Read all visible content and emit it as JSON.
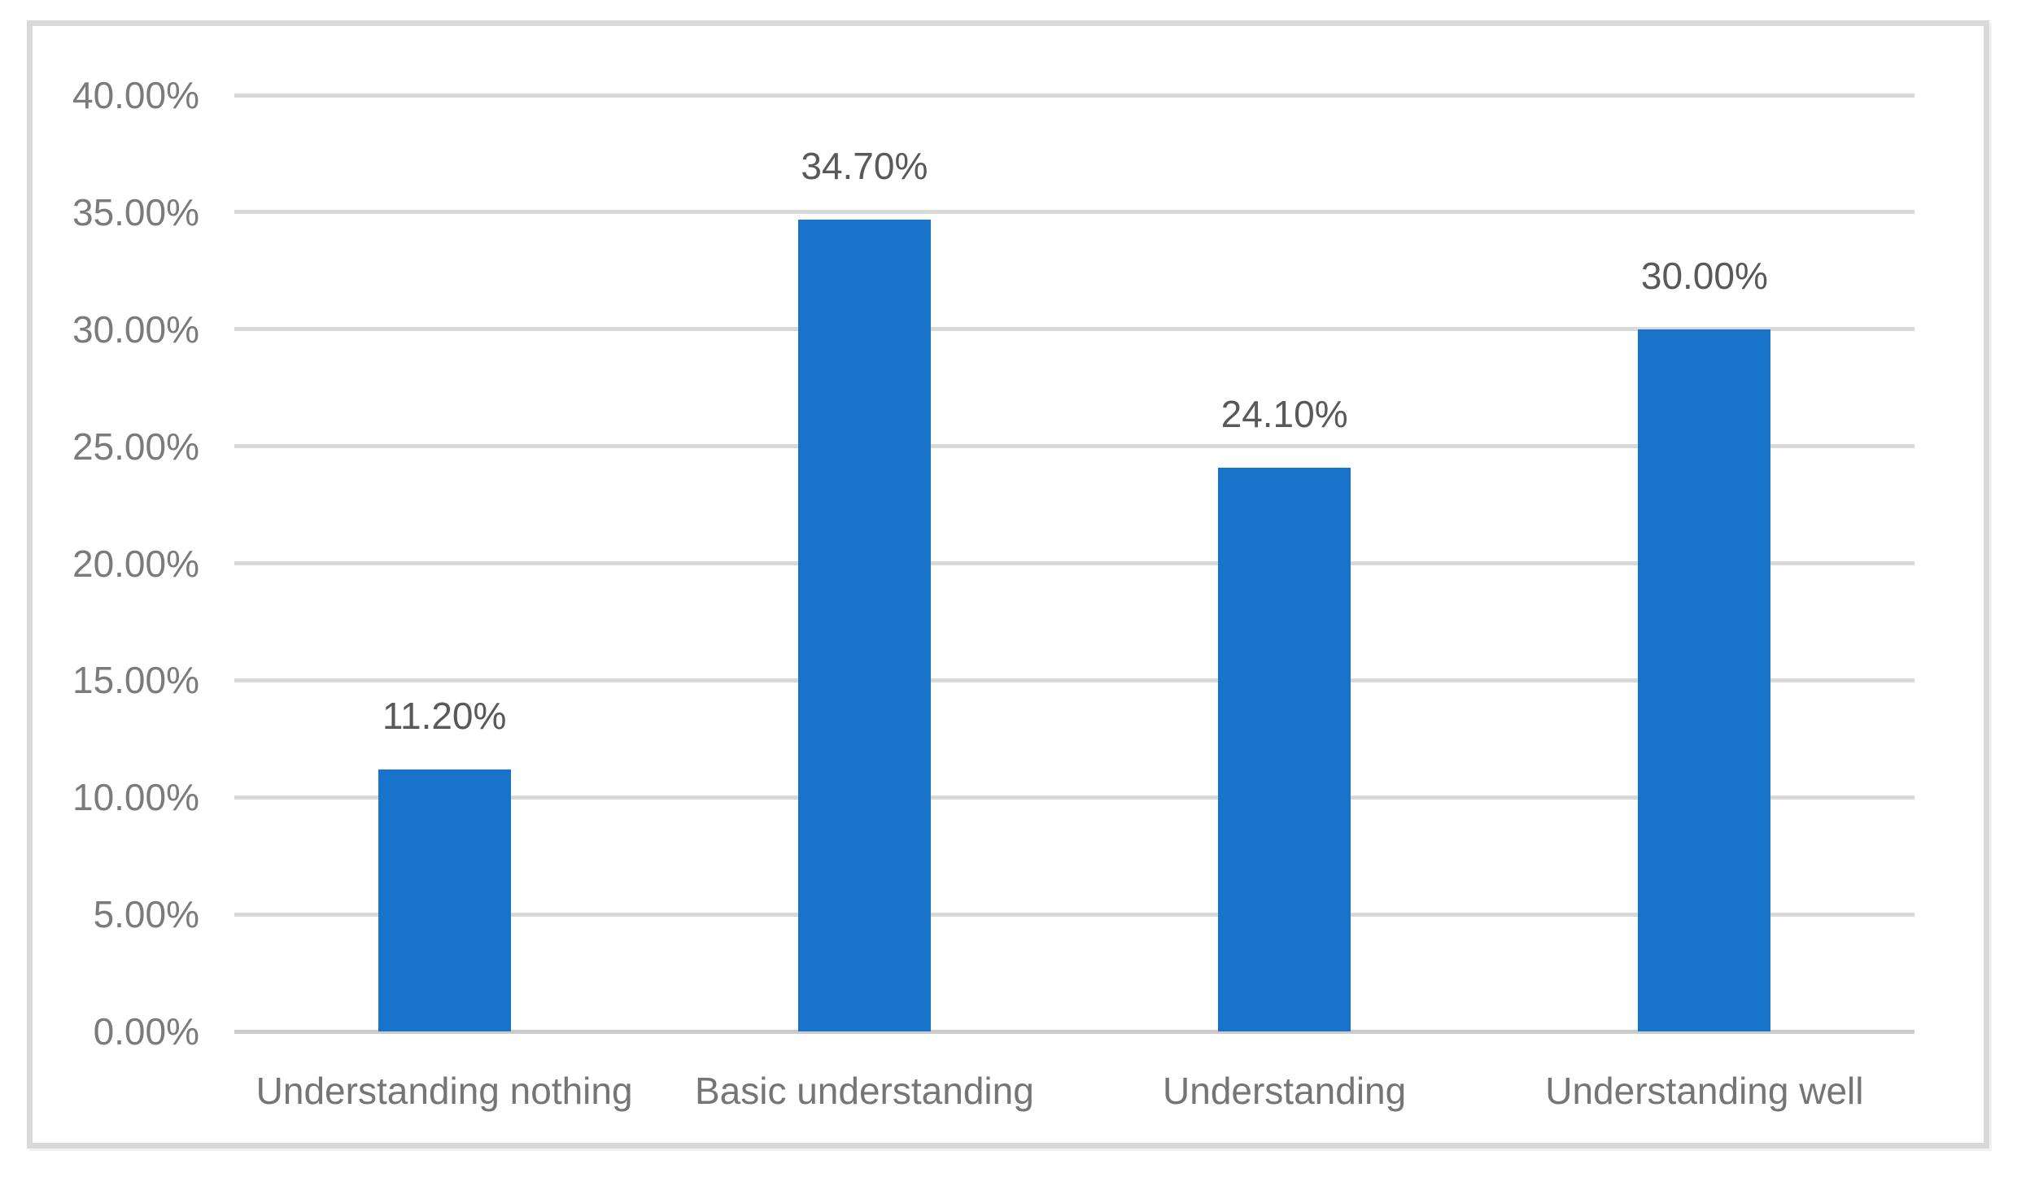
{
  "chart_data": {
    "type": "bar",
    "title": "",
    "xlabel": "",
    "ylabel": "",
    "categories": [
      "Understanding nothing",
      "Basic understanding",
      "Understanding",
      "Understanding well"
    ],
    "values": [
      11.2,
      34.7,
      24.1,
      30.0
    ],
    "data_labels": [
      "11.20%",
      "34.70%",
      "24.10%",
      "30.00%"
    ],
    "y_tick_labels": [
      "0.00%",
      "5.00%",
      "10.00%",
      "15.00%",
      "20.00%",
      "25.00%",
      "30.00%",
      "35.00%",
      "40.00%"
    ],
    "y_tick_values": [
      0,
      5,
      10,
      15,
      20,
      25,
      30,
      35,
      40
    ],
    "ylim": [
      0,
      40
    ],
    "grid": true,
    "legend": false,
    "colors": {
      "bar": "#1774CA",
      "gridline": "#D9D9D9",
      "axis_line": "#CCCACA",
      "frame_border": "#D9D9D9",
      "tick_label": "#7B7B7B",
      "category_label": "#757575",
      "data_label": "#595959",
      "background": "#FFFFFF"
    }
  }
}
